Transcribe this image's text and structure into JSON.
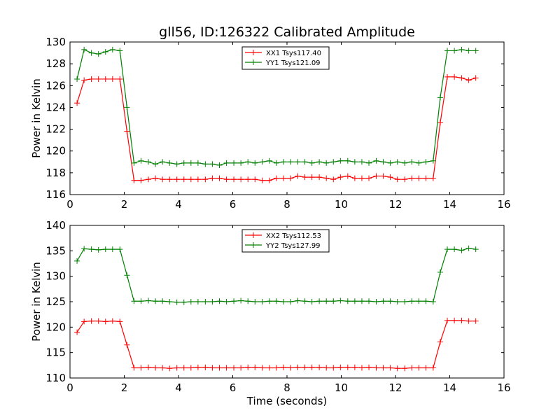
{
  "title": "gll56, ID:126322 Calibrated Amplitude",
  "chart_data": [
    {
      "type": "line",
      "xlabel": "",
      "ylabel": "Power in Kelvin",
      "xlim": [
        0,
        16
      ],
      "ylim": [
        116,
        130
      ],
      "xticks": [
        0,
        2,
        4,
        6,
        8,
        10,
        12,
        14,
        16
      ],
      "yticks": [
        116,
        118,
        120,
        122,
        124,
        126,
        128,
        130
      ],
      "x": [
        0.26,
        0.52,
        0.79,
        1.05,
        1.31,
        1.57,
        1.84,
        2.1,
        2.36,
        2.62,
        2.89,
        3.15,
        3.41,
        3.67,
        3.94,
        4.2,
        4.46,
        4.72,
        4.99,
        5.25,
        5.51,
        5.77,
        6.04,
        6.3,
        6.56,
        6.82,
        7.09,
        7.35,
        7.61,
        7.87,
        8.14,
        8.4,
        8.66,
        8.92,
        9.19,
        9.45,
        9.71,
        9.97,
        10.24,
        10.5,
        10.76,
        11.02,
        11.29,
        11.55,
        11.81,
        12.07,
        12.34,
        12.6,
        12.86,
        13.12,
        13.39,
        13.65,
        13.91,
        14.17,
        14.44,
        14.7,
        14.96
      ],
      "series": [
        {
          "name": "XX1 Tsys117.40",
          "color": "#ff0000",
          "values": [
            124.4,
            126.5,
            126.6,
            126.6,
            126.6,
            126.6,
            126.6,
            121.8,
            117.3,
            117.3,
            117.4,
            117.5,
            117.4,
            117.4,
            117.4,
            117.4,
            117.4,
            117.4,
            117.4,
            117.5,
            117.5,
            117.4,
            117.4,
            117.4,
            117.4,
            117.4,
            117.3,
            117.3,
            117.5,
            117.5,
            117.5,
            117.7,
            117.6,
            117.6,
            117.6,
            117.5,
            117.4,
            117.6,
            117.7,
            117.5,
            117.5,
            117.5,
            117.7,
            117.7,
            117.6,
            117.4,
            117.4,
            117.5,
            117.5,
            117.5,
            117.5,
            122.6,
            126.8,
            126.8,
            126.7,
            126.5,
            126.7
          ]
        },
        {
          "name": "YY1 Tsys121.09",
          "color": "#008000",
          "values": [
            126.6,
            129.3,
            129.0,
            128.9,
            129.1,
            129.3,
            129.2,
            124.0,
            118.9,
            119.1,
            119.0,
            118.8,
            119.0,
            118.9,
            118.8,
            118.9,
            118.9,
            118.9,
            118.8,
            118.8,
            118.7,
            118.9,
            118.9,
            118.9,
            119.0,
            118.9,
            119.0,
            119.1,
            118.9,
            119.0,
            119.0,
            119.0,
            119.0,
            118.9,
            119.0,
            118.9,
            119.0,
            119.1,
            119.1,
            119.0,
            119.0,
            118.9,
            119.1,
            119.0,
            118.9,
            119.0,
            118.9,
            119.0,
            118.9,
            119.0,
            119.1,
            124.9,
            129.2,
            129.2,
            129.3,
            129.2,
            129.2
          ]
        }
      ],
      "xtick_labels_visible": true,
      "legend": "top-center"
    },
    {
      "type": "line",
      "xlabel": "Time (seconds)",
      "ylabel": "Power in Kelvin",
      "xlim": [
        0,
        16
      ],
      "ylim": [
        110,
        140
      ],
      "xticks": [
        0,
        2,
        4,
        6,
        8,
        10,
        12,
        14,
        16
      ],
      "yticks": [
        110,
        115,
        120,
        125,
        130,
        135,
        140
      ],
      "x": [
        0.26,
        0.52,
        0.79,
        1.05,
        1.31,
        1.57,
        1.84,
        2.1,
        2.36,
        2.62,
        2.89,
        3.15,
        3.41,
        3.67,
        3.94,
        4.2,
        4.46,
        4.72,
        4.99,
        5.25,
        5.51,
        5.77,
        6.04,
        6.3,
        6.56,
        6.82,
        7.09,
        7.35,
        7.61,
        7.87,
        8.14,
        8.4,
        8.66,
        8.92,
        9.19,
        9.45,
        9.71,
        9.97,
        10.24,
        10.5,
        10.76,
        11.02,
        11.29,
        11.55,
        11.81,
        12.07,
        12.34,
        12.6,
        12.86,
        13.12,
        13.39,
        13.65,
        13.91,
        14.17,
        14.44,
        14.7,
        14.96
      ],
      "series": [
        {
          "name": "XX2 Tsys112.53",
          "color": "#ff0000",
          "values": [
            119.0,
            121.1,
            121.2,
            121.2,
            121.1,
            121.2,
            121.1,
            116.5,
            112.0,
            112.0,
            112.1,
            112.0,
            112.0,
            111.9,
            112.0,
            112.0,
            112.0,
            112.1,
            112.1,
            112.0,
            112.0,
            112.0,
            112.0,
            112.0,
            112.1,
            112.1,
            112.0,
            112.0,
            112.0,
            112.1,
            112.0,
            112.1,
            112.1,
            112.1,
            112.1,
            112.0,
            112.0,
            112.1,
            112.1,
            112.1,
            112.0,
            112.1,
            112.0,
            112.0,
            112.0,
            111.9,
            111.9,
            112.0,
            112.0,
            112.0,
            112.0,
            117.1,
            121.3,
            121.3,
            121.3,
            121.2,
            121.2
          ]
        },
        {
          "name": "YY2 Tsys127.99",
          "color": "#008000",
          "values": [
            133.0,
            135.4,
            135.3,
            135.2,
            135.3,
            135.3,
            135.3,
            130.2,
            125.1,
            125.1,
            125.2,
            125.1,
            125.1,
            125.0,
            124.9,
            124.9,
            125.0,
            125.0,
            125.0,
            125.0,
            125.1,
            125.0,
            125.1,
            125.2,
            125.1,
            125.0,
            125.0,
            125.1,
            125.1,
            125.0,
            125.0,
            125.2,
            125.1,
            125.0,
            125.1,
            125.1,
            125.1,
            125.2,
            125.1,
            125.1,
            125.1,
            125.1,
            125.0,
            125.1,
            125.1,
            125.0,
            125.0,
            125.1,
            125.1,
            125.1,
            125.0,
            130.8,
            135.3,
            135.3,
            135.1,
            135.5,
            135.3
          ]
        }
      ],
      "xtick_labels_visible": true,
      "legend": "top-center"
    }
  ]
}
